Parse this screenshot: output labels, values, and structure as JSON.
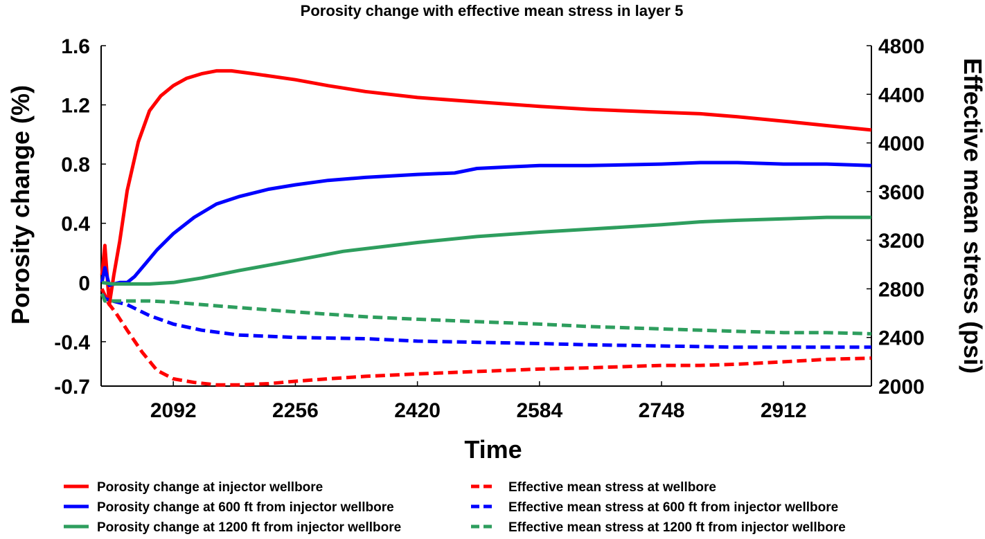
{
  "chart_data": {
    "type": "line",
    "title": "Porosity change with effective mean stress in layer 5",
    "xlabel": "Time",
    "ylabel": "Porosity change (%)",
    "y2label": "Effective mean stress (psi)",
    "xlim": [
      1995,
      3030
    ],
    "ylim": [
      -0.7,
      1.6
    ],
    "y2lim": [
      2000,
      4800
    ],
    "xticks": [
      2092,
      2256,
      2420,
      2584,
      2748,
      2912
    ],
    "xtick_labels": [
      "2092",
      "2256",
      "2420",
      "2584",
      "2748",
      "2912"
    ],
    "yticks": [
      -0.7,
      -0.4,
      0,
      0.4,
      0.8,
      1.2,
      1.6
    ],
    "ytick_labels": [
      "-0.7",
      "-0.4",
      "0",
      "0.4",
      "0.8",
      "1.2",
      "1.6"
    ],
    "y2ticks": [
      2000,
      2400,
      2800,
      3200,
      3600,
      4000,
      4400,
      4800
    ],
    "y2tick_labels": [
      "2000",
      "2400",
      "2800",
      "3200",
      "3600",
      "4000",
      "4400",
      "4800"
    ],
    "grid": false,
    "legend_position": "bottom",
    "series": [
      {
        "name": "Porosity change at injector wellbore",
        "axis": "left",
        "style": "solid",
        "color": "#ff0000",
        "x": [
          1996,
          2000,
          2006,
          2012,
          2020,
          2030,
          2045,
          2060,
          2075,
          2092,
          2110,
          2130,
          2150,
          2170,
          2200,
          2256,
          2300,
          2350,
          2420,
          2500,
          2584,
          2650,
          2748,
          2800,
          2850,
          2912,
          2970,
          3030
        ],
        "values": [
          0.05,
          0.25,
          -0.15,
          0.05,
          0.28,
          0.62,
          0.95,
          1.16,
          1.26,
          1.33,
          1.38,
          1.41,
          1.43,
          1.43,
          1.41,
          1.37,
          1.33,
          1.29,
          1.25,
          1.22,
          1.19,
          1.17,
          1.15,
          1.14,
          1.12,
          1.09,
          1.06,
          1.03
        ]
      },
      {
        "name": "Porosity change at 600 ft from injector wellbore",
        "axis": "left",
        "style": "solid",
        "color": "#0000ff",
        "x": [
          1996,
          2000,
          2006,
          2012,
          2020,
          2030,
          2040,
          2055,
          2070,
          2092,
          2120,
          2150,
          2180,
          2220,
          2256,
          2300,
          2350,
          2420,
          2470,
          2500,
          2540,
          2584,
          2650,
          2748,
          2800,
          2850,
          2912,
          2970,
          3030
        ],
        "values": [
          0.0,
          0.1,
          -0.02,
          -0.01,
          0.0,
          0.0,
          0.04,
          0.13,
          0.22,
          0.33,
          0.44,
          0.53,
          0.58,
          0.63,
          0.66,
          0.69,
          0.71,
          0.73,
          0.74,
          0.77,
          0.78,
          0.79,
          0.79,
          0.8,
          0.81,
          0.81,
          0.8,
          0.8,
          0.79
        ]
      },
      {
        "name": "Porosity change at 1200 ft from injector wellbore",
        "axis": "left",
        "style": "solid",
        "color": "#2e9e5e",
        "x": [
          1996,
          2010,
          2030,
          2060,
          2092,
          2130,
          2180,
          2256,
          2320,
          2420,
          2500,
          2584,
          2650,
          2748,
          2800,
          2850,
          2912,
          2970,
          3030
        ],
        "values": [
          0.0,
          -0.01,
          -0.01,
          -0.01,
          0.0,
          0.03,
          0.08,
          0.15,
          0.21,
          0.27,
          0.31,
          0.34,
          0.36,
          0.39,
          0.41,
          0.42,
          0.43,
          0.44,
          0.44
        ]
      },
      {
        "name": "Effective mean stress at wellbore",
        "axis": "right",
        "style": "dashed",
        "color": "#ff0000",
        "x": [
          1996,
          2005,
          2015,
          2030,
          2050,
          2070,
          2092,
          2120,
          2150,
          2180,
          2220,
          2256,
          2300,
          2350,
          2420,
          2500,
          2584,
          2650,
          2748,
          2800,
          2850,
          2912,
          2970,
          3030
        ],
        "values": [
          2800,
          2680,
          2600,
          2460,
          2280,
          2130,
          2060,
          2030,
          2010,
          2010,
          2020,
          2040,
          2060,
          2080,
          2100,
          2120,
          2140,
          2150,
          2170,
          2170,
          2180,
          2200,
          2220,
          2230
        ]
      },
      {
        "name": "Effective mean stress at 600 ft from injector wellbore",
        "axis": "right",
        "style": "dashed",
        "color": "#0000ff",
        "x": [
          1996,
          2000,
          2010,
          2030,
          2060,
          2092,
          2130,
          2180,
          2256,
          2350,
          2420,
          2500,
          2584,
          2650,
          2748,
          2850,
          2912,
          2970,
          3030
        ],
        "values": [
          2760,
          2720,
          2700,
          2670,
          2580,
          2510,
          2460,
          2420,
          2400,
          2390,
          2370,
          2360,
          2350,
          2340,
          2330,
          2320,
          2320,
          2320,
          2320
        ]
      },
      {
        "name": "Effective mean stress at 1200 ft from injector wellbore",
        "axis": "right",
        "style": "dashed",
        "color": "#2e9e5e",
        "x": [
          1996,
          2000,
          2020,
          2060,
          2092,
          2150,
          2256,
          2350,
          2420,
          2500,
          2584,
          2650,
          2748,
          2850,
          2912,
          2970,
          3030
        ],
        "values": [
          2760,
          2700,
          2700,
          2700,
          2690,
          2660,
          2610,
          2570,
          2550,
          2530,
          2510,
          2490,
          2470,
          2450,
          2440,
          2440,
          2430
        ]
      }
    ]
  }
}
